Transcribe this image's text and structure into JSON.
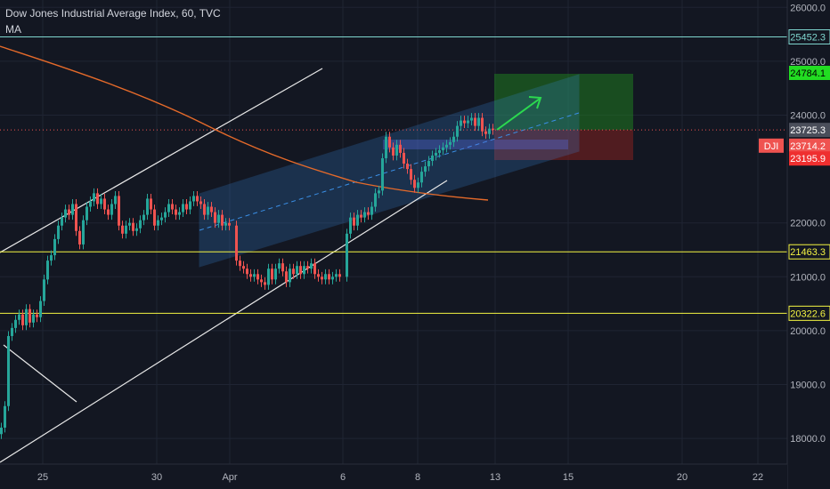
{
  "header": {
    "title": "Dow Jones Industrial Average Index, 60, TVC",
    "indicator": "MA"
  },
  "chart_data": {
    "type": "candlestick",
    "symbol_tag": "DJI",
    "y_axis": {
      "ticks": [
        26000,
        25000,
        24000,
        22000,
        21000,
        20000,
        19000,
        18000
      ],
      "labels": [
        "26000.0",
        "25000.0",
        "24000.0",
        "22000.0",
        "21000.0",
        "20000.0",
        "19000.0",
        "18000.0"
      ],
      "range": [
        17500,
        26200
      ]
    },
    "x_axis": {
      "labels": [
        "25",
        "30",
        "Apr",
        "6",
        "8",
        "13",
        "15",
        "20",
        "22"
      ]
    },
    "horizontal_levels": [
      {
        "value": 25452.3,
        "label": "25452.3",
        "color": "#7fd6cf"
      },
      {
        "value": 21463.3,
        "label": "21463.3",
        "color": "#f5f542"
      },
      {
        "value": 20322.6,
        "label": "20322.6",
        "color": "#f5f542"
      }
    ],
    "price_tags": [
      {
        "value": 24784.1,
        "label": "24784.1",
        "bg": "#22dd22",
        "fg": "#000000"
      },
      {
        "value": 23725.3,
        "label": "23725.3",
        "bg": "#4a4e5a",
        "fg": "#ffffff"
      },
      {
        "value": 23714.2,
        "label": "23714.2",
        "bg": "#ef5350",
        "fg": "#ffffff"
      },
      {
        "value": 23195.9,
        "label": "23195.9",
        "bg": "#ef2f2f",
        "fg": "#ffffff"
      }
    ],
    "current_price": 23725.3,
    "colors": {
      "up": "#26a69a",
      "down": "#ef5350",
      "ma": "#e56a2a",
      "channel": "#3a8fe6",
      "trendline": "#e8e8e8",
      "target_zone": "#1f7a1f",
      "stop_zone": "#7a1f1f",
      "arrow": "#2bd94f"
    }
  }
}
